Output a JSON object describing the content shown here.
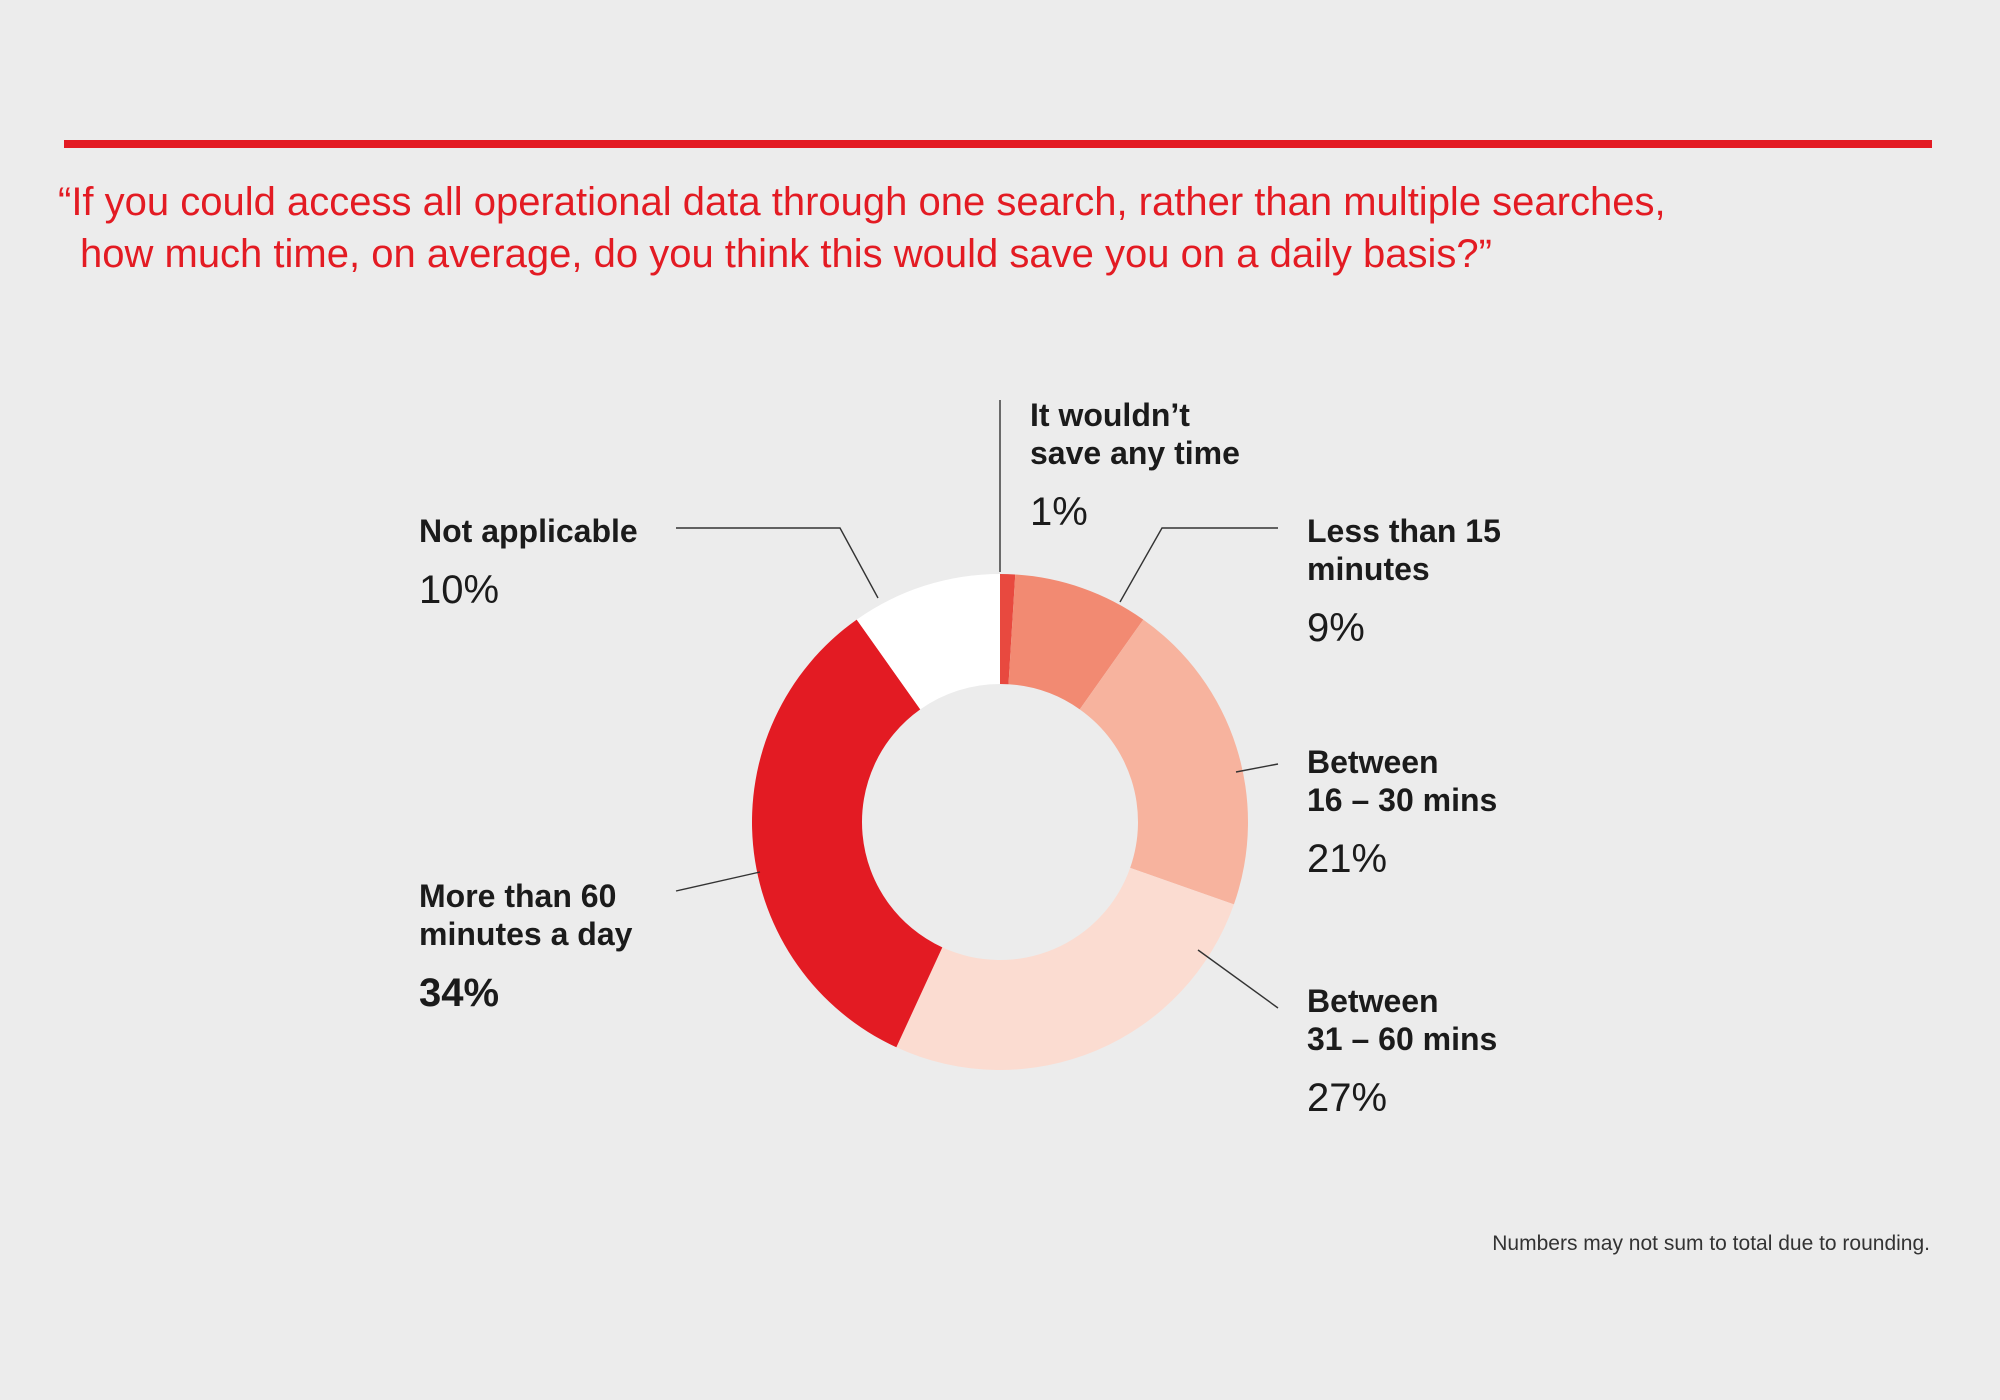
{
  "title": {
    "line1": "“If you could access all operational data through one search, rather than multiple searches,",
    "line2": "how much time, on average, do you think this would save you on a daily basis?”"
  },
  "chart_data": {
    "type": "pie",
    "variant": "donut",
    "title": "“If you could access all operational data through one search, rather than multiple searches, how much time, on average, do you think this would save you on a daily basis?”",
    "slices": [
      {
        "label": "It wouldn’t\nsave any time",
        "value": 1,
        "display": "1%",
        "color": "#e8493f"
      },
      {
        "label": "Less than 15\nminutes",
        "value": 9,
        "display": "9%",
        "color": "#f28a72"
      },
      {
        "label": "Between\n16 – 30 mins",
        "value": 21,
        "display": "21%",
        "color": "#f7b39e"
      },
      {
        "label": "Between\n31 – 60 mins",
        "value": 27,
        "display": "27%",
        "color": "#fbdcd1"
      },
      {
        "label": "More than 60\nminutes a day",
        "value": 34,
        "display": "34%",
        "color": "#e31b23"
      },
      {
        "label": "Not applicable",
        "value": 10,
        "display": "10%",
        "color": "#ffffff"
      }
    ],
    "start_angle": "top, clockwise",
    "legend": "callout labels"
  },
  "footnote": "Numbers may not sum to total due to rounding."
}
